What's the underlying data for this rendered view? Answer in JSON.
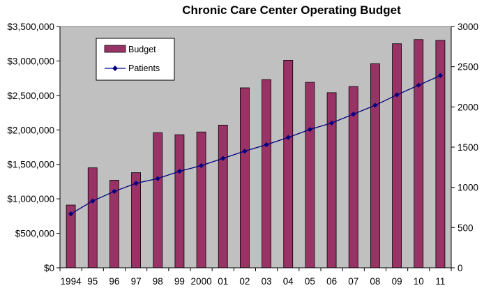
{
  "chart_data": {
    "type": "bar",
    "title": "Chronic Care Center Operating Budget",
    "categories": [
      "1994",
      "95",
      "96",
      "97",
      "98",
      "99",
      "2000",
      "01",
      "02",
      "03",
      "04",
      "05",
      "06",
      "07",
      "08",
      "09",
      "10",
      "11"
    ],
    "series": [
      {
        "name": "Budget",
        "type": "bar",
        "axis": "left",
        "color": "#993366",
        "values": [
          910000,
          1450000,
          1270000,
          1380000,
          1960000,
          1930000,
          1970000,
          2070000,
          2610000,
          2730000,
          3010000,
          2690000,
          2540000,
          2630000,
          2960000,
          3250000,
          3310000,
          3300000
        ]
      },
      {
        "name": "Patients",
        "type": "line",
        "axis": "right",
        "color": "#000080",
        "marker": "diamond",
        "values": [
          670,
          830,
          950,
          1050,
          1110,
          1200,
          1270,
          1360,
          1450,
          1530,
          1620,
          1720,
          1800,
          1910,
          2020,
          2150,
          2270,
          2390
        ]
      }
    ],
    "y_left": {
      "ylim": [
        0,
        3500000
      ],
      "tick_labels": [
        "$0",
        "$500,000",
        "$1,000,000",
        "$1,500,000",
        "$2,000,000",
        "$2,500,000",
        "$3,000,000",
        "$3,500,000"
      ]
    },
    "y_right": {
      "ylim": [
        0,
        3000
      ],
      "tick_labels": [
        "0",
        "500",
        "1000",
        "1500",
        "2000",
        "2500",
        "3000"
      ]
    },
    "plot_background": "#c0c0c0",
    "grid": false,
    "legend_placement": "top-left inside plot"
  }
}
